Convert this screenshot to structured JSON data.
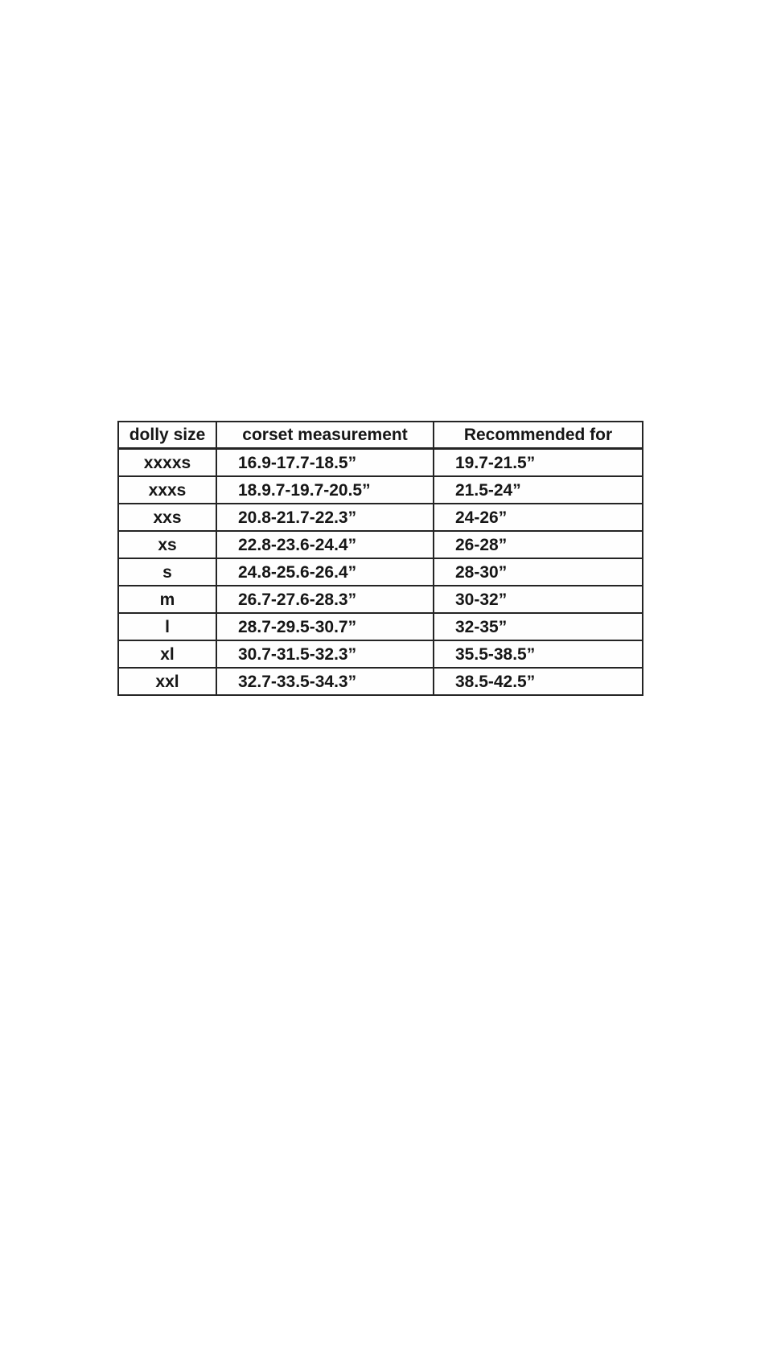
{
  "table": {
    "headers": [
      "dolly size",
      "corset measurement",
      "Recommended for"
    ],
    "rows": [
      [
        "xxxxs",
        "16.9-17.7-18.5”",
        "19.7-21.5”"
      ],
      [
        "xxxs",
        "18.9.7-19.7-20.5”",
        "21.5-24”"
      ],
      [
        "xxs",
        "20.8-21.7-22.3”",
        "24-26”"
      ],
      [
        "xs",
        "22.8-23.6-24.4”",
        "26-28”"
      ],
      [
        "s",
        "24.8-25.6-26.4”",
        "28-30”"
      ],
      [
        "m",
        "26.7-27.6-28.3”",
        "30-32”"
      ],
      [
        "l",
        "28.7-29.5-30.7”",
        "32-35”"
      ],
      [
        "xl",
        "30.7-31.5-32.3”",
        "35.5-38.5”"
      ],
      [
        "xxl",
        "32.7-33.5-34.3”",
        "38.5-42.5”"
      ]
    ]
  }
}
